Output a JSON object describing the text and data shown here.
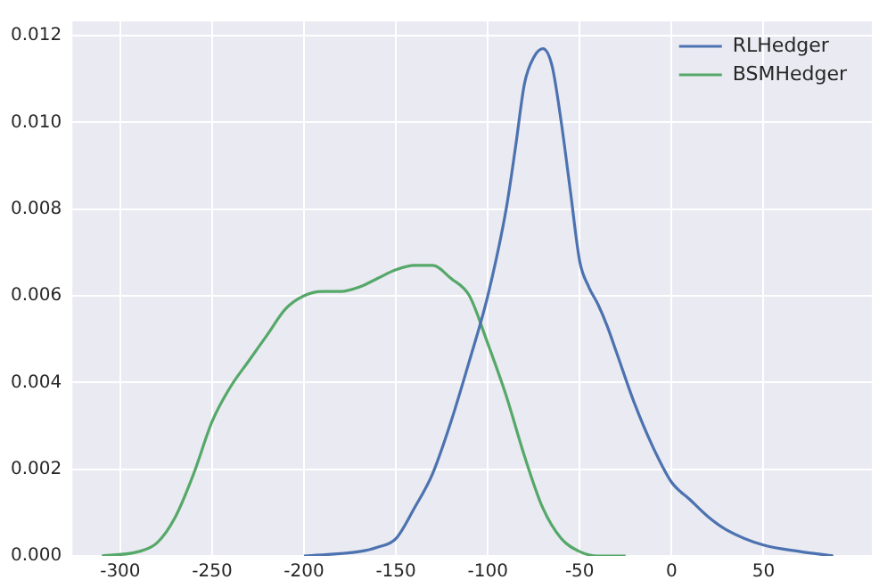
{
  "chart_data": {
    "type": "line",
    "xlim": [
      -326,
      109
    ],
    "ylim": [
      0,
      0.01233
    ],
    "xticks": [
      -300,
      -250,
      -200,
      -150,
      -100,
      -50,
      0,
      50
    ],
    "yticks": [
      {
        "value": 0,
        "label": "0.000"
      },
      {
        "value": 0.002,
        "label": "0.002"
      },
      {
        "value": 0.004,
        "label": "0.004"
      },
      {
        "value": 0.006,
        "label": "0.006"
      },
      {
        "value": 0.008,
        "label": "0.008"
      },
      {
        "value": 0.01,
        "label": "0.010"
      },
      {
        "value": 0.012,
        "label": "0.012"
      }
    ],
    "grid": true,
    "legend": "top right",
    "marker": "none",
    "line_style": "solid",
    "series": [
      {
        "name": "RLHedger",
        "color": "#4c72b0",
        "x": [
          -200,
          -170,
          -160,
          -150,
          -140,
          -130,
          -120,
          -110,
          -100,
          -90,
          -85,
          -80,
          -75,
          -70,
          -65,
          -60,
          -55,
          -50,
          -45,
          -40,
          -35,
          -30,
          -20,
          -10,
          0,
          10,
          20,
          30,
          50,
          70,
          88
        ],
        "values": [
          0,
          0.0001,
          0.0002,
          0.0004,
          0.0011,
          0.0019,
          0.0031,
          0.0045,
          0.006,
          0.008,
          0.0094,
          0.0109,
          0.0115,
          0.0117,
          0.0113,
          0.01,
          0.0084,
          0.0068,
          0.0062,
          0.0058,
          0.0053,
          0.0047,
          0.0035,
          0.0025,
          0.0017,
          0.0013,
          0.0009,
          0.0006,
          0.00025,
          0.0001,
          0
        ]
      },
      {
        "name": "BSMHedger",
        "color": "#55a868",
        "x": [
          -310,
          -290,
          -280,
          -270,
          -260,
          -250,
          -240,
          -230,
          -220,
          -210,
          -200,
          -190,
          -180,
          -170,
          -160,
          -150,
          -140,
          -130,
          -120,
          -110,
          -100,
          -90,
          -80,
          -70,
          -60,
          -50,
          -40,
          -25
        ],
        "values": [
          0,
          0.0001,
          0.0003,
          0.0009,
          0.0019,
          0.0031,
          0.0039,
          0.0045,
          0.0051,
          0.0057,
          0.006,
          0.0061,
          0.0061,
          0.0062,
          0.0064,
          0.0066,
          0.0067,
          0.0067,
          0.0064,
          0.006,
          0.0049,
          0.0037,
          0.0023,
          0.0011,
          0.0004,
          0.0001,
          0,
          0
        ]
      }
    ]
  }
}
